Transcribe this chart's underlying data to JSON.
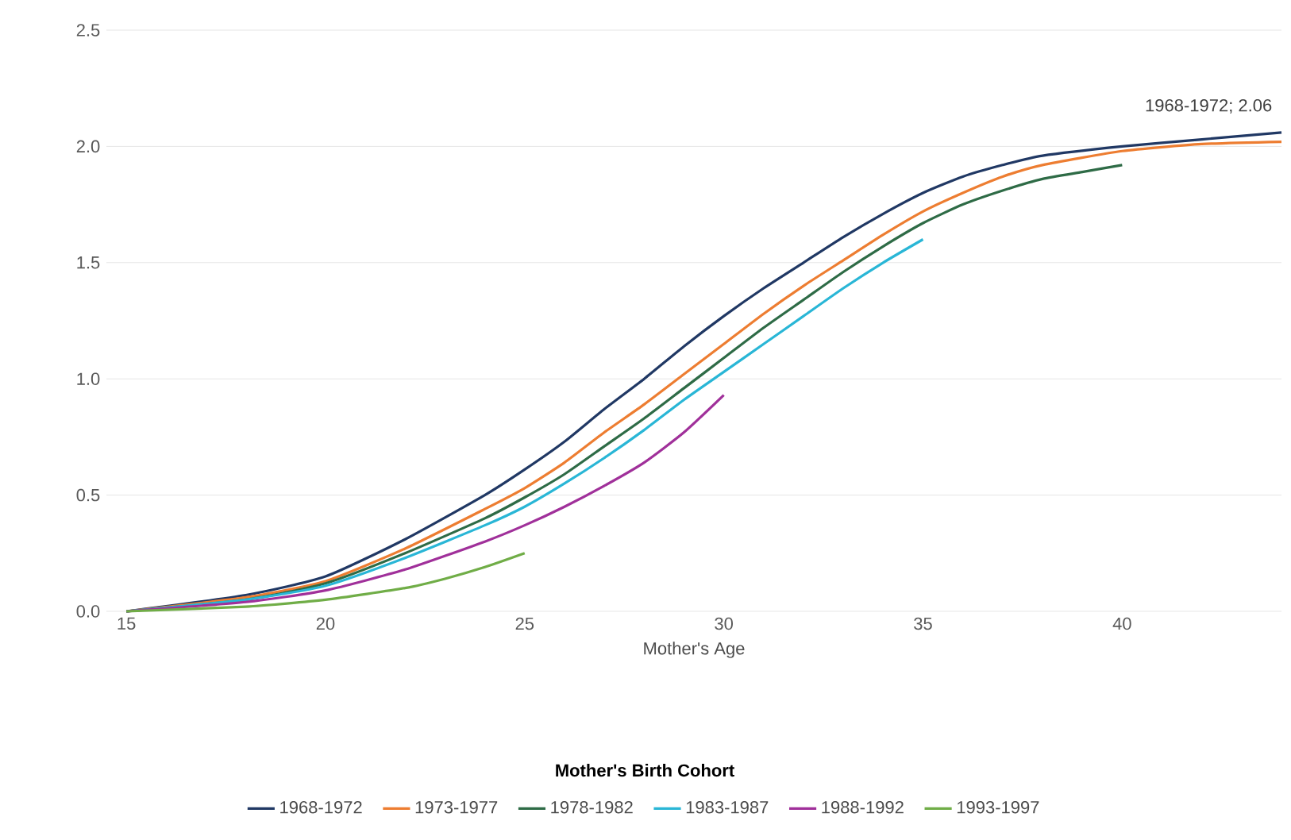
{
  "chart_data": {
    "type": "line",
    "xlabel": "Mother's Age",
    "legend_title": "Mother's Birth Cohort",
    "legend": "bottom",
    "grid": "y",
    "marker": "none",
    "line_style": "solid",
    "xlim": [
      14.5,
      44
    ],
    "ylim": [
      0,
      2.5
    ],
    "xticks": [
      15,
      20,
      25,
      30,
      35,
      40
    ],
    "yticks": [
      {
        "value": 0,
        "label": "0.0"
      },
      {
        "value": 0.5,
        "label": "0.5"
      },
      {
        "value": 1,
        "label": "1.0"
      },
      {
        "value": 1.5,
        "label": "1.5"
      },
      {
        "value": 2,
        "label": "2.0"
      },
      {
        "value": 2.5,
        "label": "2.5"
      }
    ],
    "annotations": [
      {
        "text": "1968-1972; 2.06",
        "x": 44,
        "y": 2.06
      }
    ],
    "series": [
      {
        "name": "1968-1972",
        "color": "#203864",
        "x": [
          15,
          18,
          20,
          22,
          24,
          25,
          26,
          27,
          28,
          29,
          30,
          31,
          32,
          33,
          34,
          35,
          36,
          37,
          38,
          40,
          42,
          44
        ],
        "values": [
          0,
          0.07,
          0.15,
          0.31,
          0.5,
          0.61,
          0.73,
          0.87,
          1.0,
          1.14,
          1.27,
          1.39,
          1.5,
          1.61,
          1.71,
          1.8,
          1.87,
          1.92,
          1.96,
          2.0,
          2.03,
          2.06
        ]
      },
      {
        "name": "1973-1977",
        "color": "#ed7d31",
        "x": [
          15,
          18,
          20,
          22,
          24,
          25,
          26,
          27,
          28,
          29,
          30,
          31,
          32,
          33,
          34,
          35,
          36,
          37,
          38,
          40,
          42,
          44
        ],
        "values": [
          0,
          0.06,
          0.13,
          0.27,
          0.44,
          0.53,
          0.64,
          0.77,
          0.89,
          1.02,
          1.15,
          1.28,
          1.4,
          1.51,
          1.62,
          1.72,
          1.8,
          1.87,
          1.92,
          1.98,
          2.01,
          2.02
        ]
      },
      {
        "name": "1978-1982",
        "color": "#2e6b46",
        "x": [
          15,
          18,
          20,
          22,
          24,
          25,
          26,
          27,
          28,
          29,
          30,
          31,
          32,
          33,
          34,
          35,
          36,
          37,
          38,
          39,
          40
        ],
        "values": [
          0,
          0.05,
          0.12,
          0.25,
          0.4,
          0.49,
          0.59,
          0.71,
          0.83,
          0.96,
          1.09,
          1.22,
          1.34,
          1.46,
          1.57,
          1.67,
          1.75,
          1.81,
          1.86,
          1.89,
          1.92
        ]
      },
      {
        "name": "1983-1987",
        "color": "#29b6d6",
        "x": [
          15,
          18,
          20,
          22,
          24,
          25,
          26,
          27,
          28,
          29,
          30,
          31,
          32,
          33,
          34,
          35
        ],
        "values": [
          0,
          0.05,
          0.11,
          0.23,
          0.37,
          0.45,
          0.55,
          0.66,
          0.78,
          0.91,
          1.03,
          1.15,
          1.27,
          1.39,
          1.5,
          1.6
        ]
      },
      {
        "name": "1988-1992",
        "color": "#a0309a",
        "x": [
          15,
          18,
          20,
          22,
          24,
          25,
          26,
          27,
          28,
          29,
          30
        ],
        "values": [
          0,
          0.04,
          0.09,
          0.18,
          0.3,
          0.37,
          0.45,
          0.54,
          0.64,
          0.77,
          0.93
        ]
      },
      {
        "name": "1993-1997",
        "color": "#70ad47",
        "x": [
          15,
          18,
          20,
          22,
          23,
          24,
          25
        ],
        "values": [
          0,
          0.02,
          0.05,
          0.1,
          0.14,
          0.19,
          0.25
        ]
      }
    ]
  }
}
